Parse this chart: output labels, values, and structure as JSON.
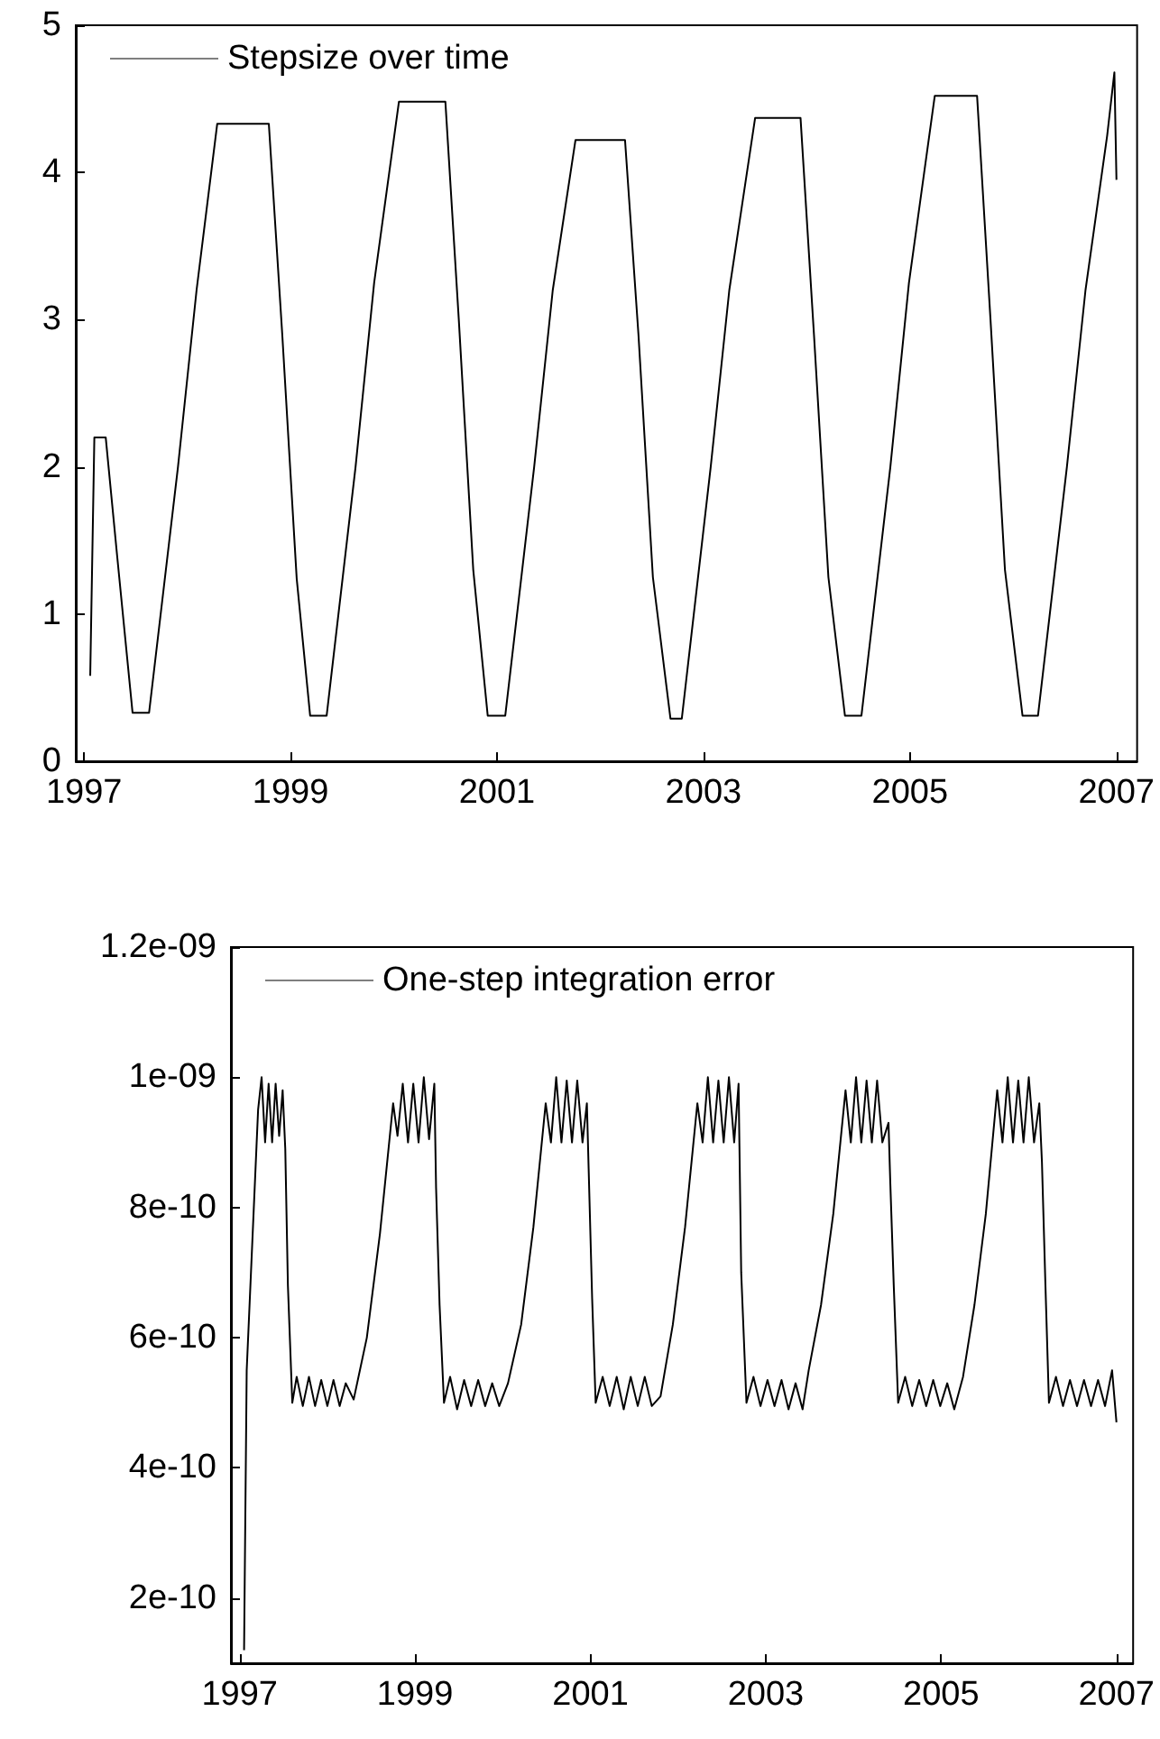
{
  "chart_data": [
    {
      "type": "line",
      "xlim": [
        1996.92,
        2007.2
      ],
      "ylim": [
        0,
        5
      ],
      "xticks": [
        1997,
        1999,
        2001,
        2003,
        2005,
        2007
      ],
      "yticks": [
        0,
        1,
        2,
        3,
        4,
        5
      ],
      "legend": "top left",
      "grid": false,
      "marker": "none",
      "series": [
        {
          "name": "Stepsize over time",
          "color": "#000000",
          "x": [
            1997.06,
            1997.1,
            1997.21,
            1997.32,
            1997.47,
            1997.63,
            1997.91,
            1998.09,
            1998.29,
            1998.79,
            1998.92,
            1999.06,
            1999.19,
            1999.35,
            1999.63,
            1999.81,
            2000.05,
            2000.5,
            2000.63,
            2000.77,
            2000.91,
            2001.08,
            2001.36,
            2001.54,
            2001.76,
            2002.24,
            2002.37,
            2002.51,
            2002.68,
            2002.79,
            2003.07,
            2003.25,
            2003.5,
            2003.94,
            2004.07,
            2004.21,
            2004.37,
            2004.53,
            2004.81,
            2004.99,
            2005.24,
            2005.65,
            2005.78,
            2005.92,
            2006.09,
            2006.24,
            2006.52,
            2006.7,
            2006.91,
            2006.98,
            2007.0
          ],
          "values": [
            0.58,
            2.2,
            2.2,
            1.4,
            0.33,
            0.33,
            2.0,
            3.2,
            4.33,
            4.33,
            2.9,
            1.24,
            0.31,
            0.31,
            2.0,
            3.25,
            4.48,
            4.48,
            3.0,
            1.3,
            0.31,
            0.31,
            2.0,
            3.2,
            4.22,
            4.22,
            2.9,
            1.25,
            0.29,
            0.29,
            2.0,
            3.2,
            4.37,
            4.37,
            2.9,
            1.25,
            0.31,
            0.31,
            2.0,
            3.25,
            4.52,
            4.52,
            3.0,
            1.3,
            0.31,
            0.31,
            2.0,
            3.2,
            4.25,
            4.68,
            3.95
          ]
        }
      ]
    },
    {
      "type": "line",
      "xlim": [
        1996.9,
        2007.19
      ],
      "ylim": [
        1e-10,
        1.2e-09
      ],
      "xticks": [
        1997,
        1999,
        2001,
        2003,
        2005,
        2007
      ],
      "yticks": [
        {
          "value": 2e-10,
          "label": "2e-10"
        },
        {
          "value": 4e-10,
          "label": "4e-10"
        },
        {
          "value": 6e-10,
          "label": "6e-10"
        },
        {
          "value": 8e-10,
          "label": "8e-10"
        },
        {
          "value": 1e-09,
          "label": "1e-09"
        },
        {
          "value": 1.2e-09,
          "label": "1.2e-09"
        }
      ],
      "legend": "top left",
      "grid": false,
      "marker": "none",
      "series": [
        {
          "name": "One-step integration error",
          "color": "#000000",
          "x": [
            1997.05,
            1997.08,
            1997.21,
            1997.25,
            1997.29,
            1997.33,
            1997.37,
            1997.41,
            1997.45,
            1997.49,
            1997.52,
            1997.55,
            1997.6,
            1997.65,
            1997.72,
            1997.79,
            1997.86,
            1997.93,
            1998.0,
            1998.07,
            1998.14,
            1998.21,
            1998.3,
            1998.45,
            1998.6,
            1998.75,
            1998.8,
            1998.86,
            1998.92,
            1998.98,
            1999.04,
            1999.1,
            1999.16,
            1999.22,
            1999.24,
            1999.28,
            1999.33,
            1999.4,
            1999.48,
            1999.56,
            1999.64,
            1999.72,
            1999.8,
            1999.88,
            1999.96,
            2000.06,
            2000.21,
            2000.35,
            2000.49,
            2000.55,
            2000.61,
            2000.67,
            2000.73,
            2000.79,
            2000.85,
            2000.91,
            2000.96,
            2000.98,
            2001.02,
            2001.06,
            2001.14,
            2001.22,
            2001.3,
            2001.38,
            2001.46,
            2001.54,
            2001.62,
            2001.7,
            2001.8,
            2001.94,
            2002.08,
            2002.22,
            2002.28,
            2002.34,
            2002.4,
            2002.46,
            2002.52,
            2002.58,
            2002.64,
            2002.69,
            2002.72,
            2002.78,
            2002.86,
            2002.94,
            2003.02,
            2003.1,
            2003.18,
            2003.26,
            2003.34,
            2003.42,
            2003.49,
            2003.63,
            2003.77,
            2003.91,
            2003.97,
            2004.03,
            2004.09,
            2004.15,
            2004.21,
            2004.27,
            2004.33,
            2004.4,
            2004.42,
            2004.46,
            2004.51,
            2004.59,
            2004.67,
            2004.75,
            2004.83,
            2004.91,
            2004.99,
            2005.07,
            2005.15,
            2005.25,
            2005.38,
            2005.51,
            2005.64,
            2005.7,
            2005.76,
            2005.82,
            2005.88,
            2005.94,
            2006.0,
            2006.06,
            2006.12,
            2006.15,
            2006.19,
            2006.23,
            2006.31,
            2006.39,
            2006.47,
            2006.55,
            2006.63,
            2006.71,
            2006.79,
            2006.87,
            2006.95,
            2007.0
          ],
          "values": [
            1.2e-10,
            5.5e-10,
            9.5e-10,
            1e-09,
            9e-10,
            9.9e-10,
            9e-10,
            9.9e-10,
            9.1e-10,
            9.8e-10,
            8.9e-10,
            6.8e-10,
            5e-10,
            5.4e-10,
            4.95e-10,
            5.4e-10,
            4.95e-10,
            5.35e-10,
            4.95e-10,
            5.35e-10,
            4.95e-10,
            5.3e-10,
            5.05e-10,
            6e-10,
            7.6e-10,
            9.6e-10,
            9.1e-10,
            9.9e-10,
            9e-10,
            9.9e-10,
            9e-10,
            1e-09,
            9.05e-10,
            9.9e-10,
            8.3e-10,
            6.5e-10,
            5e-10,
            5.4e-10,
            4.9e-10,
            5.35e-10,
            4.95e-10,
            5.35e-10,
            4.95e-10,
            5.3e-10,
            4.95e-10,
            5.3e-10,
            6.2e-10,
            7.7e-10,
            9.6e-10,
            9e-10,
            1e-09,
            9e-10,
            9.95e-10,
            9e-10,
            9.95e-10,
            9e-10,
            9.6e-10,
            8.6e-10,
            6.6e-10,
            5e-10,
            5.4e-10,
            4.95e-10,
            5.4e-10,
            4.9e-10,
            5.4e-10,
            4.95e-10,
            5.4e-10,
            4.95e-10,
            5.1e-10,
            6.2e-10,
            7.7e-10,
            9.6e-10,
            9e-10,
            1e-09,
            9e-10,
            9.95e-10,
            9e-10,
            1e-09,
            9e-10,
            9.9e-10,
            7e-10,
            5e-10,
            5.4e-10,
            4.95e-10,
            5.35e-10,
            4.95e-10,
            5.35e-10,
            4.9e-10,
            5.3e-10,
            4.9e-10,
            5.5e-10,
            6.5e-10,
            7.9e-10,
            9.8e-10,
            9e-10,
            1e-09,
            9e-10,
            9.95e-10,
            9e-10,
            9.95e-10,
            9e-10,
            9.3e-10,
            8.4e-10,
            6.8e-10,
            5e-10,
            5.4e-10,
            4.95e-10,
            5.35e-10,
            4.95e-10,
            5.35e-10,
            4.95e-10,
            5.3e-10,
            4.9e-10,
            5.4e-10,
            6.5e-10,
            7.9e-10,
            9.8e-10,
            9e-10,
            1e-09,
            9e-10,
            9.95e-10,
            9e-10,
            1e-09,
            9e-10,
            9.6e-10,
            8.7e-10,
            6.8e-10,
            5e-10,
            5.4e-10,
            4.95e-10,
            5.35e-10,
            4.95e-10,
            5.35e-10,
            4.95e-10,
            5.35e-10,
            4.95e-10,
            5.5e-10,
            4.7e-10
          ]
        }
      ]
    }
  ]
}
